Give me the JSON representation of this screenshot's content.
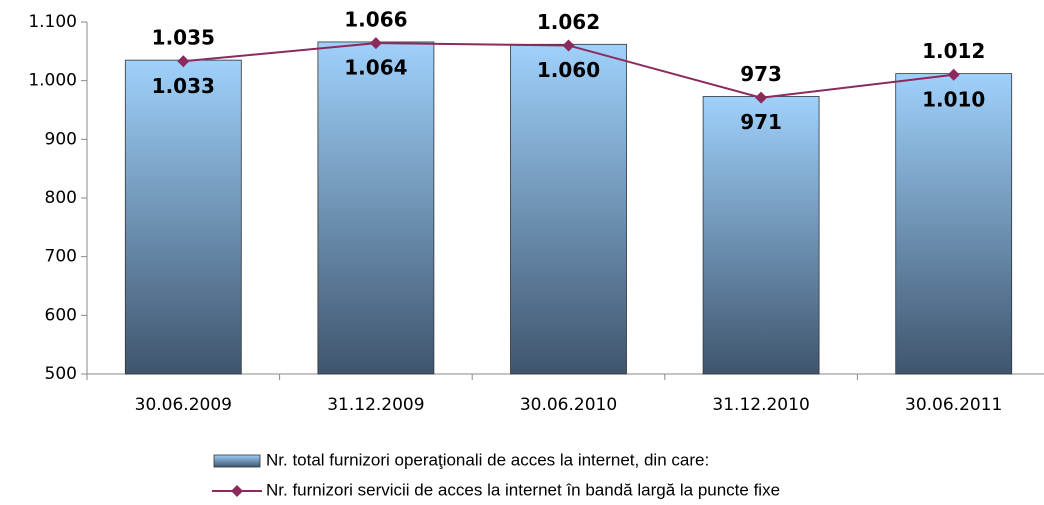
{
  "chart_data": {
    "type": "bar",
    "categories": [
      "30.06.2009",
      "31.12.2009",
      "30.06.2010",
      "31.12.2010",
      "30.06.2011"
    ],
    "series": [
      {
        "name": "Nr. total furnizori operaţionali de acces la internet, din care:",
        "type": "bar",
        "color": "#9fd1fb",
        "values": [
          1035,
          1066,
          1062,
          973,
          1012
        ],
        "value_labels": [
          "1.035",
          "1.066",
          "1.062",
          "973",
          "1.012"
        ]
      },
      {
        "name": "Nr. furnizori servicii de acces la internet în bandă largă la puncte fixe",
        "type": "line",
        "color": "#8b2a5c",
        "values": [
          1033,
          1064,
          1060,
          971,
          1010
        ],
        "value_labels": [
          "1.033",
          "1.064",
          "1.060",
          "971",
          "1.010"
        ]
      }
    ],
    "ylim": [
      500,
      1100
    ],
    "yticks": [
      500,
      600,
      700,
      800,
      900,
      {
        "value": 1000,
        "label": "1.000"
      },
      {
        "value": 1100,
        "label": "1.100"
      }
    ],
    "grid": false,
    "legend": "bottom"
  }
}
